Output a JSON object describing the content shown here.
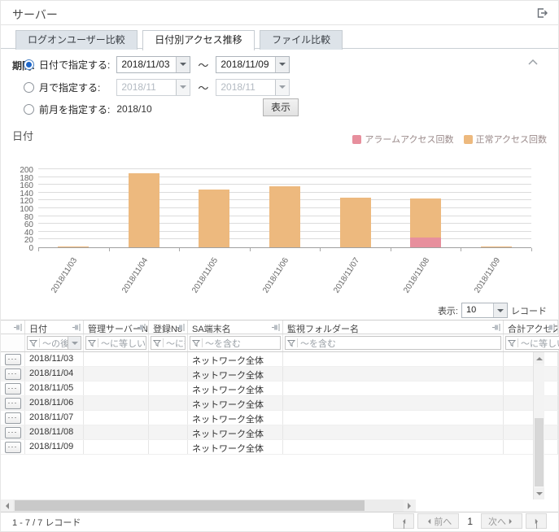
{
  "header": {
    "title": "サーバー"
  },
  "tabs": [
    {
      "label": "ログオンユーザー比較",
      "active": false
    },
    {
      "label": "日付別アクセス推移",
      "active": true
    },
    {
      "label": "ファイル比較",
      "active": false
    }
  ],
  "period": {
    "label": "期間:",
    "tilde": "～",
    "options": [
      {
        "label": "日付で指定する:",
        "selected": true,
        "from": "2018/11/03",
        "to": "2018/11/09"
      },
      {
        "label": "月で指定する:",
        "selected": false,
        "from": "2018/11",
        "to": "2018/11"
      },
      {
        "label": "前月を指定する:",
        "selected": false,
        "value": "2018/10"
      }
    ],
    "show_button": "表示"
  },
  "chart_data": {
    "type": "bar",
    "stacked": true,
    "title": "日付",
    "categories": [
      "2018/11/03",
      "2018/11/04",
      "2018/11/05",
      "2018/11/06",
      "2018/11/07",
      "2018/11/08",
      "2018/11/09"
    ],
    "series": [
      {
        "name": "アラームアクセス回数",
        "color": "#E78F9D",
        "values": [
          0,
          0,
          0,
          0,
          0,
          25,
          0
        ]
      },
      {
        "name": "正常アクセス回数",
        "color": "#EDB97E",
        "values": [
          2,
          190,
          148,
          156,
          128,
          100,
          2
        ]
      }
    ],
    "ylim": [
      0,
      200
    ],
    "y_ticks": [
      0,
      20,
      40,
      60,
      80,
      100,
      120,
      140,
      160,
      180,
      200
    ],
    "legend_position": "top-right",
    "grid": true
  },
  "table": {
    "page_size_label": "表示:",
    "page_size": "10",
    "records_label": "レコード",
    "row_button_label": "···",
    "columns": [
      {
        "header": "",
        "filter": ""
      },
      {
        "header": "日付",
        "filter": "～の後",
        "filter_dropdown": true
      },
      {
        "header": "管理サーバーNo",
        "filter": "～に等しい"
      },
      {
        "header": "登録No",
        "filter": "～に等しい"
      },
      {
        "header": "SA端末名",
        "filter": "～を含む"
      },
      {
        "header": "監視フォルダー名",
        "filter": "～を含む"
      },
      {
        "header": "合計アクセス回数",
        "filter": "～に等しい"
      }
    ],
    "rows": [
      [
        "2018/11/03",
        "",
        "",
        "ネットワーク全体",
        "",
        ""
      ],
      [
        "2018/11/04",
        "",
        "",
        "ネットワーク全体",
        "",
        ""
      ],
      [
        "2018/11/05",
        "",
        "",
        "ネットワーク全体",
        "",
        ""
      ],
      [
        "2018/11/06",
        "",
        "",
        "ネットワーク全体",
        "",
        ""
      ],
      [
        "2018/11/07",
        "",
        "",
        "ネットワーク全体",
        "",
        ""
      ],
      [
        "2018/11/08",
        "",
        "",
        "ネットワーク全体",
        "",
        ""
      ],
      [
        "2018/11/09",
        "",
        "",
        "ネットワーク全体",
        "",
        ""
      ]
    ]
  },
  "footer": {
    "summary": "1 - 7 / 7 レコード",
    "prev_label": "前へ",
    "next_label": "次へ",
    "page": "1"
  }
}
